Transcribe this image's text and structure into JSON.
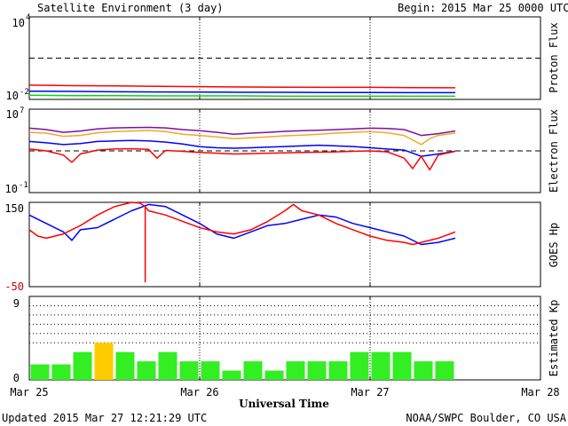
{
  "header": {
    "title": "Satellite Environment (3 day)",
    "begin_label": "Begin:",
    "begin_value": "2015 Mar 25 0000 UTC"
  },
  "footer": {
    "updated": "Updated 2015 Mar 27 12:21:29 UTC",
    "credit": "NOAA/SWPC Boulder, CO USA"
  },
  "xaxis": {
    "title": "Universal Time",
    "range_days": [
      0,
      3
    ],
    "ticks": [
      {
        "day": 0,
        "label": "Mar 25"
      },
      {
        "day": 1,
        "label": "Mar 26"
      },
      {
        "day": 2,
        "label": "Mar 27"
      },
      {
        "day": 3,
        "label": "Mar 28"
      }
    ],
    "current_time_day": 2.5
  },
  "colors": {
    "red": "#ff0000",
    "blue": "#0000ff",
    "green": "#00dd00",
    "orange": "#f5a623",
    "purple": "#7a10a0",
    "kp_green": "#33ee22",
    "kp_yellow": "#ffcc00",
    "axis_red_label": "#cc0000"
  },
  "chart_data": [
    {
      "type": "line",
      "ylabel": "Proton Flux",
      "yscale": "log",
      "ylim": [
        0.01,
        10000
      ],
      "ytick_labels": [
        {
          "base": "10",
          "exp": "4"
        },
        {
          "base": "10",
          "exp": "-2"
        }
      ],
      "reference_line": 10,
      "series": [
        {
          "color": "red",
          "x": [
            0,
            0.25,
            0.5,
            0.75,
            1.0,
            1.25,
            1.5,
            1.75,
            2.0,
            2.25,
            2.5
          ],
          "y": [
            0.11,
            0.1,
            0.095,
            0.09,
            0.085,
            0.08,
            0.078,
            0.075,
            0.075,
            0.072,
            0.07
          ]
        },
        {
          "color": "blue",
          "x": [
            0,
            0.25,
            0.5,
            0.75,
            1.0,
            1.25,
            1.5,
            1.75,
            2.0,
            2.25,
            2.5
          ],
          "y": [
            0.04,
            0.038,
            0.036,
            0.035,
            0.034,
            0.033,
            0.033,
            0.032,
            0.032,
            0.031,
            0.031
          ]
        },
        {
          "color": "green",
          "x": [
            0,
            0.25,
            0.5,
            0.75,
            1.0,
            1.25,
            1.5,
            1.75,
            2.0,
            2.25,
            2.5
          ],
          "y": [
            0.02,
            0.019,
            0.019,
            0.018,
            0.018,
            0.018,
            0.017,
            0.017,
            0.017,
            0.017,
            0.017
          ]
        }
      ]
    },
    {
      "type": "line",
      "ylabel": "Electron Flux",
      "yscale": "log",
      "ylim": [
        0.1,
        10000000
      ],
      "ytick_labels": [
        {
          "base": "10",
          "exp": "7"
        },
        {
          "base": "10",
          "exp": "-1"
        }
      ],
      "reference_line": 1000,
      "series": [
        {
          "color": "purple",
          "x": [
            0,
            0.1,
            0.2,
            0.3,
            0.4,
            0.5,
            0.6,
            0.7,
            0.8,
            0.9,
            1.0,
            1.1,
            1.2,
            1.3,
            1.4,
            1.5,
            1.6,
            1.7,
            1.8,
            1.9,
            2.0,
            2.1,
            2.2,
            2.3,
            2.4,
            2.5
          ],
          "y": [
            150000,
            110000,
            60000,
            80000,
            130000,
            160000,
            170000,
            180000,
            160000,
            110000,
            85000,
            60000,
            40000,
            50000,
            60000,
            75000,
            85000,
            95000,
            110000,
            130000,
            150000,
            140000,
            110000,
            30000,
            45000,
            80000
          ]
        },
        {
          "color": "orange",
          "x": [
            0,
            0.1,
            0.2,
            0.3,
            0.4,
            0.5,
            0.6,
            0.7,
            0.8,
            0.9,
            1.0,
            1.1,
            1.2,
            1.3,
            1.4,
            1.5,
            1.6,
            1.7,
            1.8,
            1.9,
            2.0,
            2.1,
            2.2,
            2.3,
            2.35,
            2.4,
            2.5
          ],
          "y": [
            60000,
            50000,
            25000,
            30000,
            55000,
            70000,
            80000,
            90000,
            70000,
            40000,
            30000,
            22000,
            15000,
            18000,
            22000,
            28000,
            32000,
            40000,
            50000,
            60000,
            70000,
            55000,
            30000,
            4000,
            15000,
            30000,
            50000
          ]
        },
        {
          "color": "blue",
          "x": [
            0,
            0.1,
            0.2,
            0.3,
            0.4,
            0.5,
            0.6,
            0.7,
            0.8,
            0.9,
            1.0,
            1.1,
            1.2,
            1.3,
            1.4,
            1.5,
            1.6,
            1.7,
            1.8,
            1.9,
            2.0,
            2.1,
            2.2,
            2.3,
            2.4,
            2.5
          ],
          "y": [
            8000,
            6000,
            4000,
            5000,
            8000,
            9000,
            10000,
            9000,
            7000,
            4500,
            2500,
            2000,
            1800,
            2000,
            2300,
            2600,
            3000,
            3500,
            3000,
            2600,
            2000,
            1500,
            1200,
            300,
            500,
            900
          ]
        },
        {
          "color": "red",
          "x": [
            0,
            0.1,
            0.2,
            0.25,
            0.3,
            0.4,
            0.5,
            0.6,
            0.7,
            0.75,
            0.8,
            0.9,
            1.0,
            1.1,
            1.2,
            1.3,
            1.4,
            1.5,
            1.6,
            1.7,
            1.8,
            1.9,
            2.0,
            2.1,
            2.2,
            2.25,
            2.3,
            2.35,
            2.4,
            2.5
          ],
          "y": [
            1500,
            1000,
            400,
            80,
            500,
            1200,
            1500,
            1600,
            1400,
            200,
            1100,
            900,
            700,
            600,
            500,
            550,
            600,
            650,
            700,
            750,
            800,
            900,
            1000,
            800,
            200,
            20,
            300,
            15,
            400,
            900
          ]
        }
      ]
    },
    {
      "type": "line",
      "ylabel": "GOES Hp",
      "ylim": [
        -50,
        150
      ],
      "ytick_labels": [
        "150",
        "-50"
      ],
      "series": [
        {
          "color": "blue",
          "x": [
            0,
            0.1,
            0.2,
            0.25,
            0.3,
            0.4,
            0.5,
            0.6,
            0.7,
            0.8,
            0.9,
            1.0,
            1.1,
            1.2,
            1.3,
            1.4,
            1.5,
            1.6,
            1.7,
            1.8,
            1.9,
            2.0,
            2.1,
            2.2,
            2.3,
            2.4,
            2.5
          ],
          "y": [
            120,
            100,
            80,
            60,
            85,
            90,
            110,
            130,
            145,
            140,
            120,
            100,
            75,
            65,
            80,
            95,
            100,
            110,
            120,
            115,
            100,
            90,
            80,
            70,
            50,
            55,
            65
          ]
        },
        {
          "color": "red",
          "x": [
            0,
            0.05,
            0.1,
            0.2,
            0.3,
            0.4,
            0.5,
            0.6,
            0.65,
            0.68,
            0.7,
            0.8,
            0.9,
            1.0,
            1.1,
            1.2,
            1.3,
            1.4,
            1.5,
            1.55,
            1.6,
            1.7,
            1.8,
            1.9,
            2.0,
            2.1,
            2.2,
            2.25,
            2.3,
            2.4,
            2.5
          ],
          "y": [
            85,
            70,
            65,
            75,
            95,
            120,
            140,
            150,
            148,
            140,
            130,
            120,
            105,
            90,
            80,
            75,
            85,
            105,
            130,
            145,
            130,
            120,
            100,
            85,
            70,
            60,
            55,
            50,
            55,
            65,
            80
          ]
        },
        {
          "color": "red",
          "x": [
            0.68,
            0.68
          ],
          "y": [
            140,
            -40
          ]
        }
      ]
    },
    {
      "type": "bar",
      "ylabel": "Estimated Kp",
      "ylim": [
        0,
        9
      ],
      "ytick_labels": [
        "9",
        "0"
      ],
      "gridlines": [
        4,
        5,
        6,
        7,
        8,
        9
      ],
      "bar_width_days": 0.125,
      "values": [
        1.67,
        1.67,
        3,
        4,
        3,
        2,
        3,
        2,
        2,
        1,
        2,
        1,
        2,
        2,
        2,
        3,
        3,
        3,
        2,
        2
      ],
      "colors": [
        "kp_green",
        "kp_green",
        "kp_green",
        "kp_yellow",
        "kp_green",
        "kp_green",
        "kp_green",
        "kp_green",
        "kp_green",
        "kp_green",
        "kp_green",
        "kp_green",
        "kp_green",
        "kp_green",
        "kp_green",
        "kp_green",
        "kp_green",
        "kp_green",
        "kp_green",
        "kp_green"
      ]
    }
  ]
}
